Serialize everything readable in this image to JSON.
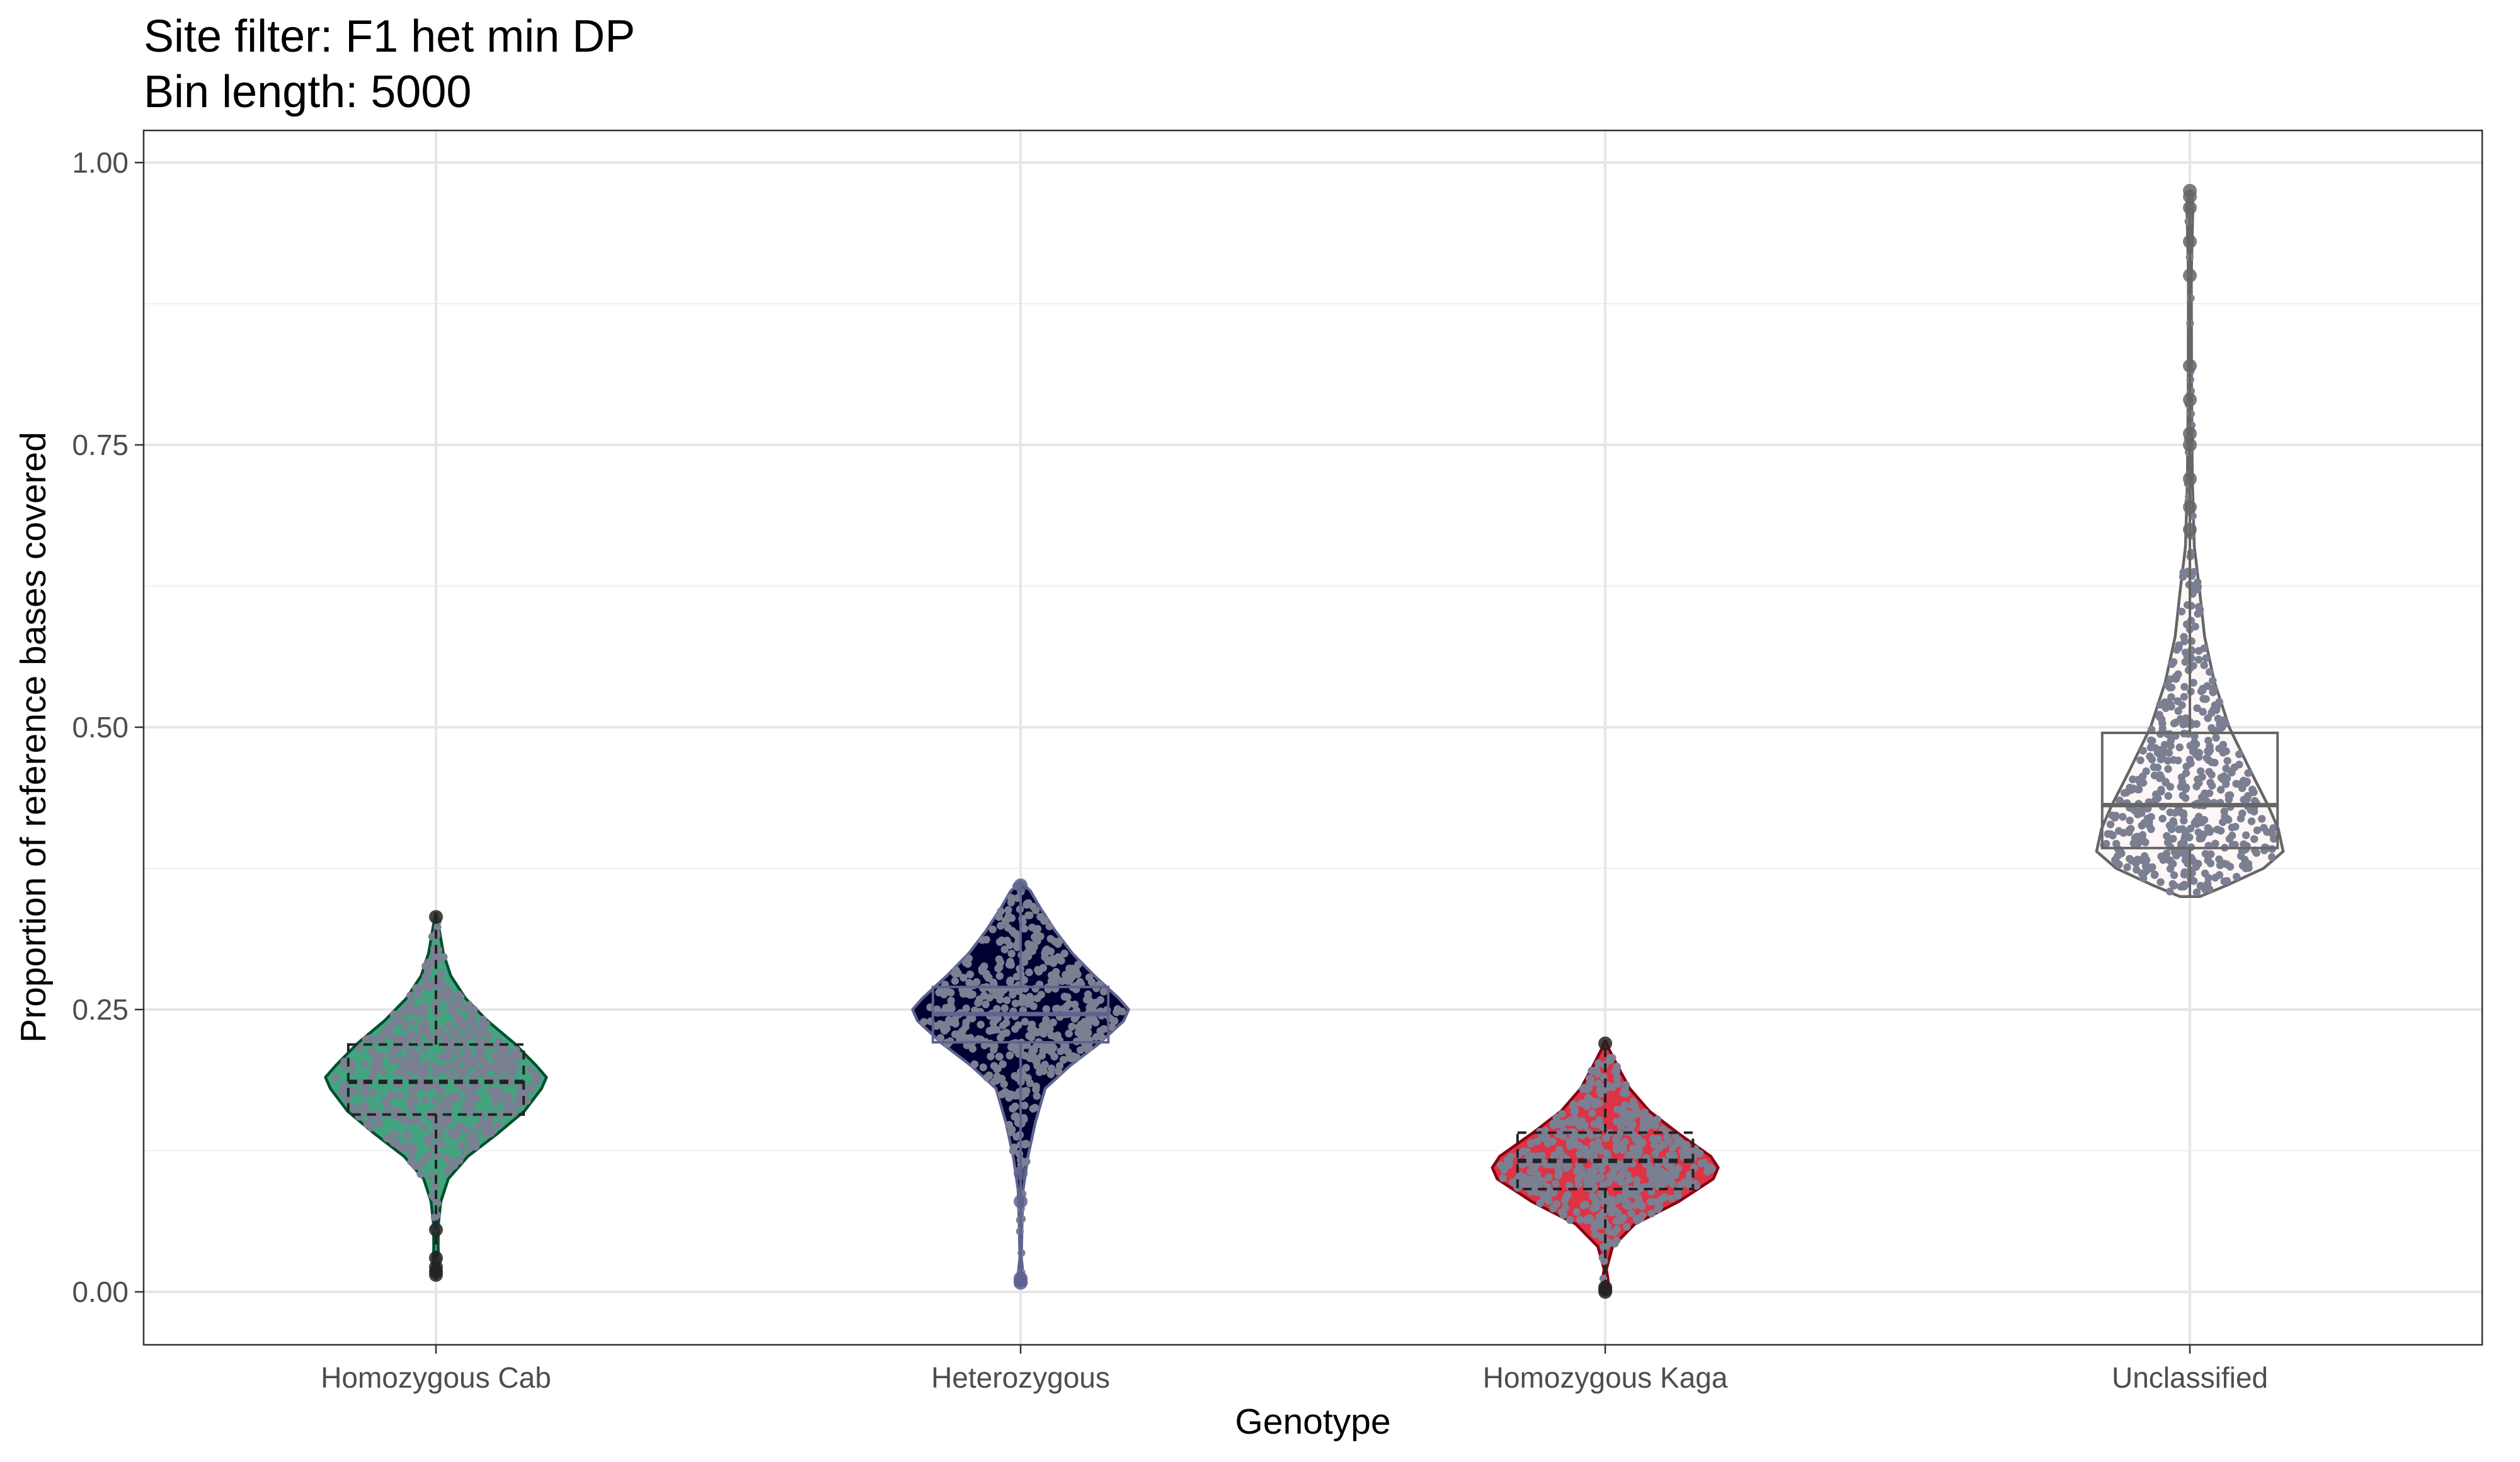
{
  "chart_data": {
    "type": "violin",
    "title": "Site filter: F1 het min DP",
    "subtitle": "Bin length: 5000",
    "xlabel": "Genotype",
    "ylabel": "Proportion of reference bases covered",
    "ylim": [
      -0.045,
      1.03
    ],
    "y_ticks": [
      0.0,
      0.25,
      0.5,
      0.75,
      1.0
    ],
    "y_tick_labels": [
      "0.00",
      "0.25",
      "0.50",
      "0.75",
      "1.00"
    ],
    "grid": true,
    "categories": [
      "Homozygous Cab",
      "Heterozygous",
      "Homozygous Kaga",
      "Unclassified"
    ],
    "series": [
      {
        "fill": "#43a47f",
        "line": "#00502d",
        "dashed": true,
        "violin": [
          [
            0.012,
            0.002
          ],
          [
            0.02,
            0.012
          ],
          [
            0.04,
            0.009
          ],
          [
            0.06,
            0.01
          ],
          [
            0.08,
            0.02
          ],
          [
            0.1,
            0.05
          ],
          [
            0.12,
            0.13
          ],
          [
            0.14,
            0.25
          ],
          [
            0.16,
            0.36
          ],
          [
            0.18,
            0.43
          ],
          [
            0.19,
            0.45
          ],
          [
            0.2,
            0.41
          ],
          [
            0.22,
            0.32
          ],
          [
            0.24,
            0.21
          ],
          [
            0.26,
            0.12
          ],
          [
            0.28,
            0.06
          ],
          [
            0.3,
            0.03
          ],
          [
            0.32,
            0.014
          ],
          [
            0.335,
            0.002
          ]
        ],
        "box": {
          "q1": 0.157,
          "median": 0.186,
          "q3": 0.219
        },
        "whisker": [
          0.012,
          0.335
        ],
        "outliers": [
          0.015,
          0.018,
          0.022,
          0.03,
          0.055,
          0.332
        ]
      },
      {
        "fill": "#000033",
        "line": "#5f6390",
        "dashed": false,
        "violin": [
          [
            0.006,
            0.02
          ],
          [
            0.012,
            0.012
          ],
          [
            0.03,
            0.003
          ],
          [
            0.06,
            0.006
          ],
          [
            0.09,
            0.01
          ],
          [
            0.12,
            0.03
          ],
          [
            0.15,
            0.06
          ],
          [
            0.18,
            0.1
          ],
          [
            0.2,
            0.2
          ],
          [
            0.22,
            0.32
          ],
          [
            0.24,
            0.42
          ],
          [
            0.25,
            0.44
          ],
          [
            0.26,
            0.4
          ],
          [
            0.28,
            0.3
          ],
          [
            0.3,
            0.21
          ],
          [
            0.32,
            0.14
          ],
          [
            0.34,
            0.08
          ],
          [
            0.355,
            0.04
          ],
          [
            0.363,
            0.002
          ]
        ],
        "box": {
          "q1": 0.221,
          "median": 0.246,
          "q3": 0.27
        },
        "whisker": [
          0.006,
          0.363
        ],
        "outliers": [
          0.008,
          0.01,
          0.012,
          0.08,
          0.105,
          0.36
        ]
      },
      {
        "fill": "#dd3344",
        "line": "#880011",
        "dashed": true,
        "violin": [
          [
            0.0,
            0.006
          ],
          [
            0.01,
            0.012
          ],
          [
            0.02,
            0.005
          ],
          [
            0.04,
            0.03
          ],
          [
            0.06,
            0.12
          ],
          [
            0.08,
            0.3
          ],
          [
            0.1,
            0.44
          ],
          [
            0.11,
            0.46
          ],
          [
            0.12,
            0.43
          ],
          [
            0.14,
            0.3
          ],
          [
            0.16,
            0.18
          ],
          [
            0.18,
            0.1
          ],
          [
            0.2,
            0.05
          ],
          [
            0.215,
            0.015
          ],
          [
            0.222,
            0.002
          ]
        ],
        "box": {
          "q1": 0.091,
          "median": 0.116,
          "q3": 0.141
        },
        "whisker": [
          0.0,
          0.222
        ],
        "outliers": [
          0.0,
          0.002,
          0.004,
          0.22
        ]
      },
      {
        "fill": "#fdf6f6",
        "line": "#666666",
        "dashed": false,
        "violin": [
          [
            0.35,
            0.04
          ],
          [
            0.36,
            0.15
          ],
          [
            0.375,
            0.3
          ],
          [
            0.39,
            0.38
          ],
          [
            0.41,
            0.36
          ],
          [
            0.43,
            0.32
          ],
          [
            0.46,
            0.25
          ],
          [
            0.5,
            0.16
          ],
          [
            0.54,
            0.1
          ],
          [
            0.58,
            0.06
          ],
          [
            0.62,
            0.04
          ],
          [
            0.66,
            0.018
          ],
          [
            0.72,
            0.01
          ],
          [
            0.8,
            0.007
          ],
          [
            0.9,
            0.006
          ],
          [
            0.96,
            0.012
          ],
          [
            0.975,
            0.003
          ]
        ],
        "box": {
          "q1": 0.393,
          "median": 0.431,
          "q3": 0.495
        },
        "whisker": [
          0.35,
          0.975
        ],
        "outliers": [
          0.675,
          0.695,
          0.72,
          0.75,
          0.76,
          0.79,
          0.82,
          0.9,
          0.93,
          0.96,
          0.97,
          0.975
        ]
      }
    ],
    "points_color": "#7b7f92"
  }
}
